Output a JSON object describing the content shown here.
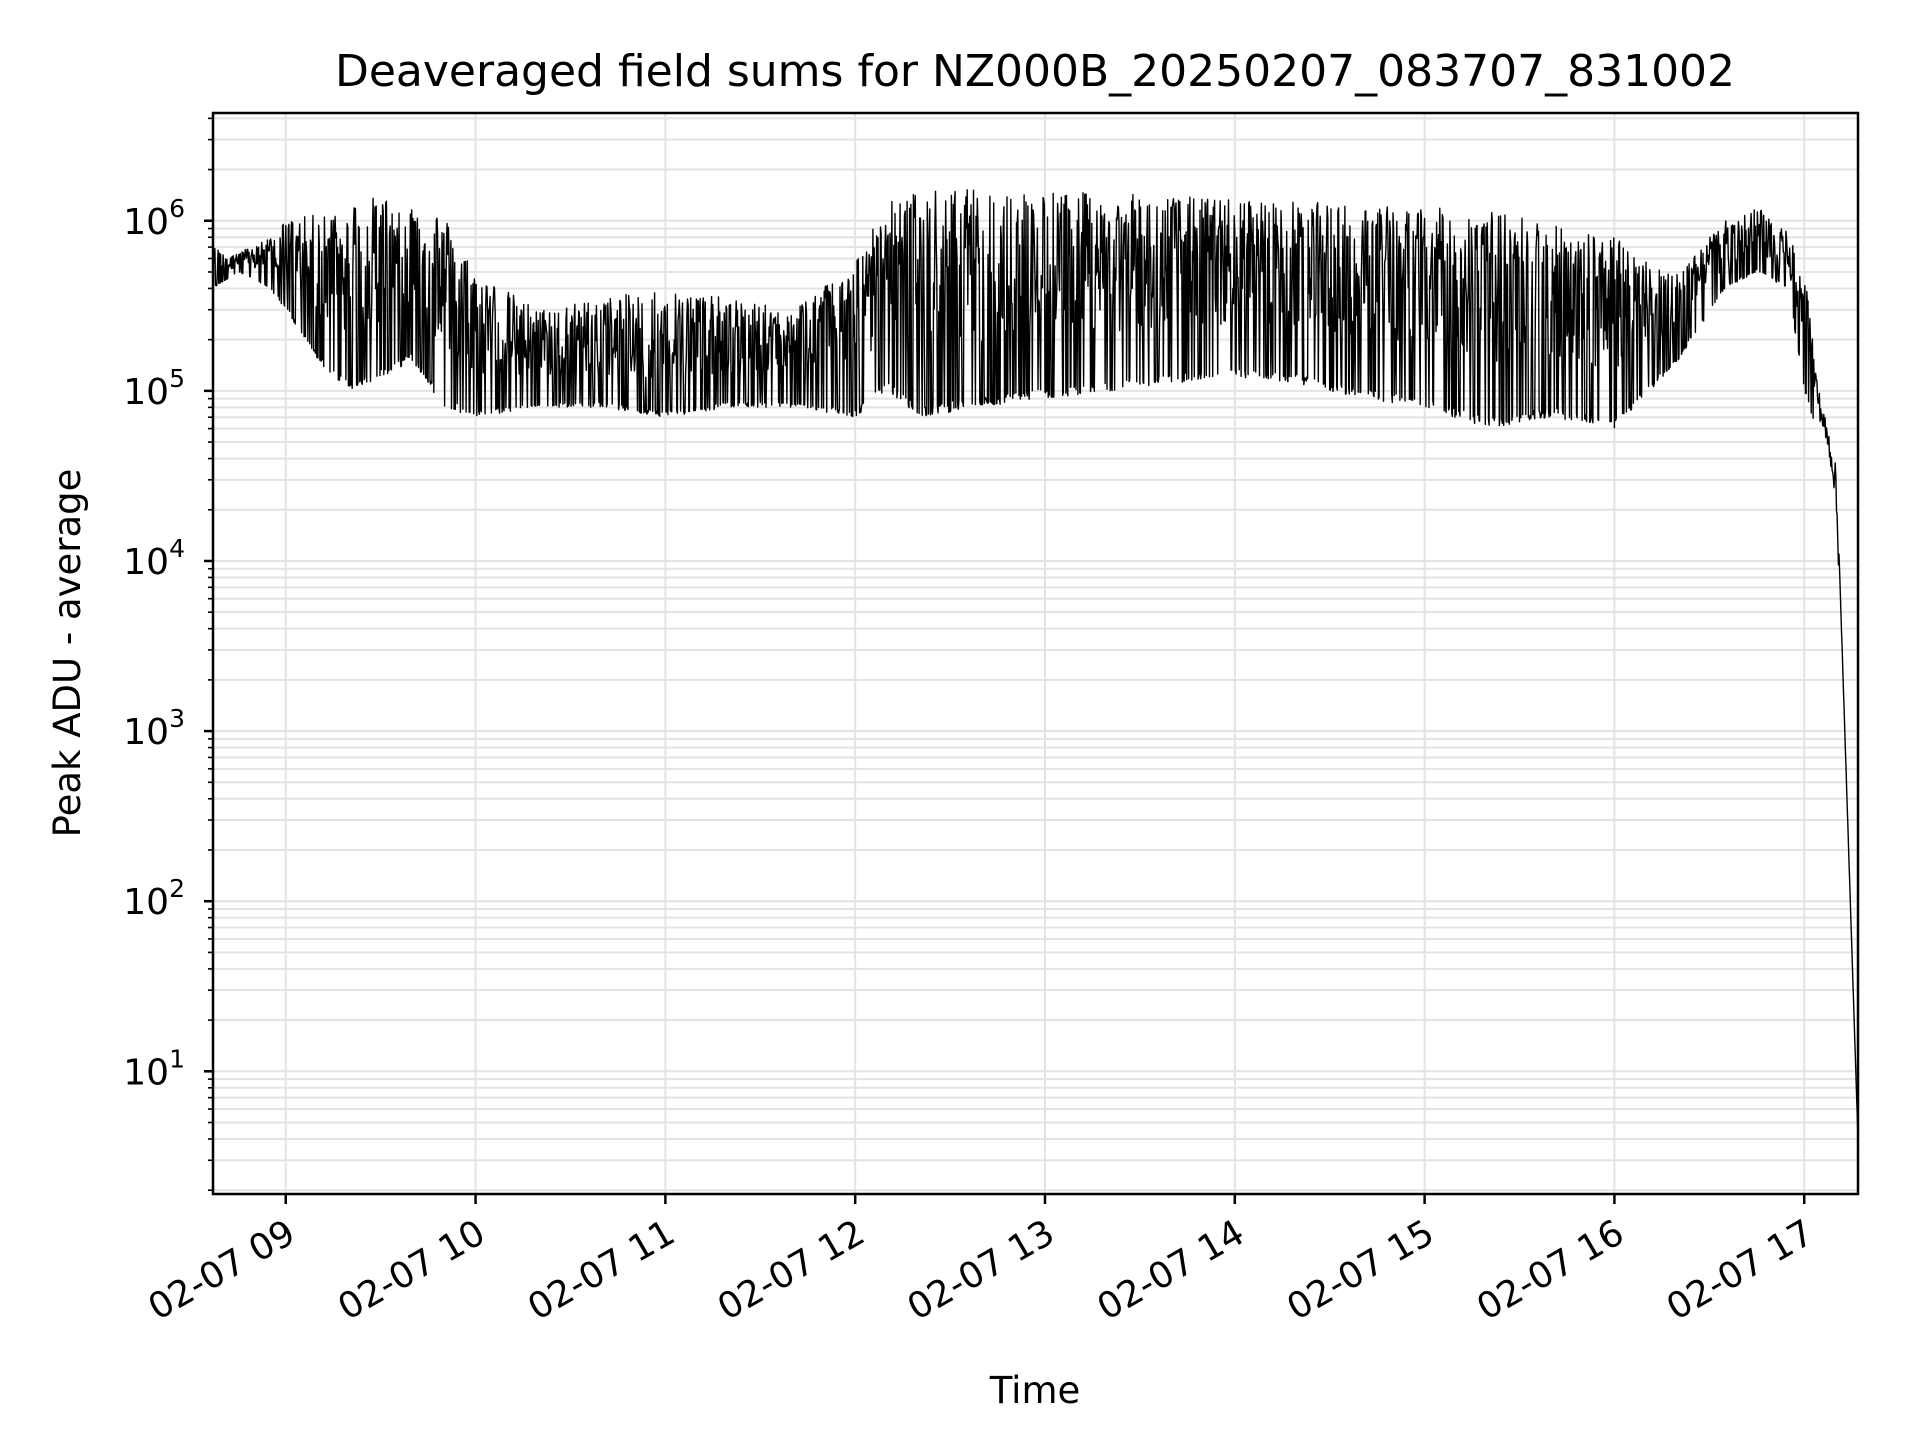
{
  "chart_data": {
    "type": "line",
    "title": "Deaveraged field sums for NZ000B_20250207_083707_831002",
    "xlabel": "Time",
    "ylabel": "Peak ADU - average",
    "yscale": "log",
    "grid": true,
    "legend": "none",
    "line_color": "#000000",
    "x_tick_labels": [
      "02-07 09",
      "02-07 10",
      "02-07 11",
      "02-07 12",
      "02-07 13",
      "02-07 14",
      "02-07 15",
      "02-07 16",
      "02-07 17"
    ],
    "y_tick_labels": [
      {
        "base": "10",
        "exp": "1",
        "value": 10
      },
      {
        "base": "10",
        "exp": "2",
        "value": 100
      },
      {
        "base": "10",
        "exp": "3",
        "value": 1000
      },
      {
        "base": "10",
        "exp": "4",
        "value": 10000
      },
      {
        "base": "10",
        "exp": "5",
        "value": 100000
      },
      {
        "base": "10",
        "exp": "6",
        "value": 1000000
      }
    ],
    "xlim": [
      "2025-02-07 08:37",
      "2025-02-07 17:17"
    ],
    "ylim": [
      1.9,
      4300000
    ],
    "series": [
      {
        "x": [
          "08:37",
          "08:45",
          "08:55",
          "09:00",
          "09:10",
          "09:20",
          "09:30",
          "09:40",
          "09:50",
          "10:00",
          "10:20",
          "10:40",
          "11:00",
          "11:20",
          "11:40",
          "12:00",
          "12:10",
          "12:20",
          "12:40",
          "13:00",
          "13:20",
          "13:40",
          "14:00",
          "14:20",
          "14:40",
          "15:00",
          "15:20",
          "15:40",
          "16:00",
          "16:20",
          "16:35",
          "16:45",
          "16:55",
          "17:00",
          "17:05",
          "17:08",
          "17:10",
          "17:12",
          "17:17"
        ],
        "upper": [
          700000,
          650000,
          800000,
          1000000,
          1100000,
          1300000,
          1400000,
          1300000,
          1100000,
          500000,
          300000,
          350000,
          400000,
          350000,
          300000,
          600000,
          1300000,
          1500000,
          1550000,
          1500000,
          1450000,
          1400000,
          1350000,
          1300000,
          1250000,
          1200000,
          1150000,
          1000000,
          800000,
          500000,
          1000000,
          1200000,
          900000,
          500000,
          100000,
          60000,
          40000,
          3000,
          4
        ],
        "lower": [
          400000,
          500000,
          400000,
          300000,
          150000,
          100000,
          120000,
          150000,
          80000,
          70000,
          80000,
          80000,
          70000,
          80000,
          80000,
          70000,
          100000,
          70000,
          80000,
          90000,
          100000,
          110000,
          120000,
          110000,
          90000,
          80000,
          60000,
          70000,
          60000,
          150000,
          400000,
          500000,
          400000,
          100000,
          50000,
          30000,
          15000,
          1600,
          4
        ]
      }
    ]
  }
}
